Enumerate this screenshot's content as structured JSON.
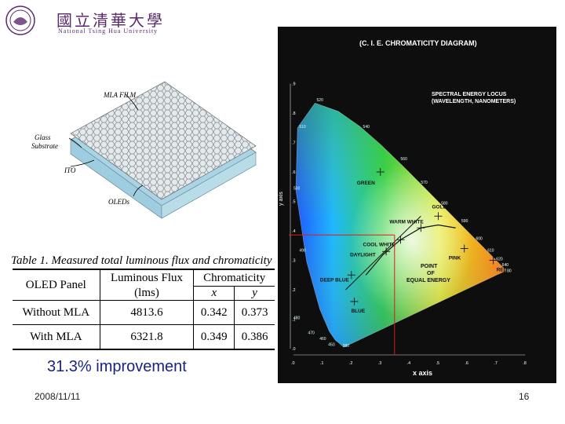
{
  "logo": {
    "chinese": "國立清華大學",
    "english": "National Tsing Hua University"
  },
  "device": {
    "labels": {
      "mla_film": "MLA FILM",
      "glass": "Glass",
      "substrate": "Substrate",
      "ito": "ITO",
      "oleds": "OLEDs"
    },
    "colors": {
      "film": "#e4e9ec",
      "glass": "#a9d4e6",
      "ito": "#d8a548",
      "oled": "#7e8fa6"
    }
  },
  "table": {
    "title": "Table 1. Measured total luminous flux and chromaticity",
    "headers": {
      "panel": "OLED Panel",
      "flux": "Luminous Flux",
      "flux_unit": "(lms)",
      "chromaticity": "Chromaticity",
      "x": "x",
      "y": "y"
    },
    "rows": [
      {
        "panel": "Without MLA",
        "flux": "4813.6",
        "x": "0.342",
        "y": "0.373"
      },
      {
        "panel": "With MLA",
        "flux": "6321.8",
        "x": "0.349",
        "y": "0.386"
      }
    ]
  },
  "improvement": "31.3% improvement",
  "footer": {
    "date": "2008/11/11",
    "page": "16"
  },
  "cie": {
    "title": "(C. I. E. CHROMATICITY DIAGRAM)",
    "x_axis_label": "x axis",
    "y_axis_label": "y axis",
    "x_ticks": [
      ".0",
      ".1",
      ".2",
      ".3",
      ".4",
      ".5",
      ".6",
      ".7",
      ".8"
    ],
    "y_ticks": [
      ".0",
      ".1",
      ".2",
      ".3",
      ".4",
      ".5",
      ".6",
      ".7",
      ".8",
      ".9"
    ],
    "locus_title_1": "SPECTRAL ENERGY LOCUS",
    "locus_title_2": "(WAVELENGTH, NANOMETERS)",
    "wavelengths": [
      "520",
      "510",
      "540",
      "560",
      "500",
      "570",
      "580",
      "590",
      "600",
      "610",
      "620",
      "640",
      "780",
      "490",
      "480",
      "470",
      "460",
      "450",
      "380"
    ],
    "points": [
      {
        "label": "GREEN",
        "x": 0.3,
        "y": 0.6
      },
      {
        "label": "GOLD",
        "x": 0.5,
        "y": 0.45
      },
      {
        "label": "WARM WHITE",
        "x": 0.44,
        "y": 0.41
      },
      {
        "label": "COOL WHITE",
        "x": 0.37,
        "y": 0.37
      },
      {
        "label": "DAYLIGHT",
        "x": 0.32,
        "y": 0.33
      },
      {
        "label": "PINK",
        "x": 0.59,
        "y": 0.34
      },
      {
        "label": "RED",
        "x": 0.69,
        "y": 0.3
      },
      {
        "label": "DEEP BLUE",
        "x": 0.2,
        "y": 0.25
      },
      {
        "label": "BLUE",
        "x": 0.21,
        "y": 0.16
      }
    ],
    "equal_energy_1": "POINT",
    "equal_energy_2": "OF",
    "equal_energy_3": "EQUAL ENERGY",
    "highlight": {
      "x": 0.349,
      "y": 0.386
    }
  }
}
